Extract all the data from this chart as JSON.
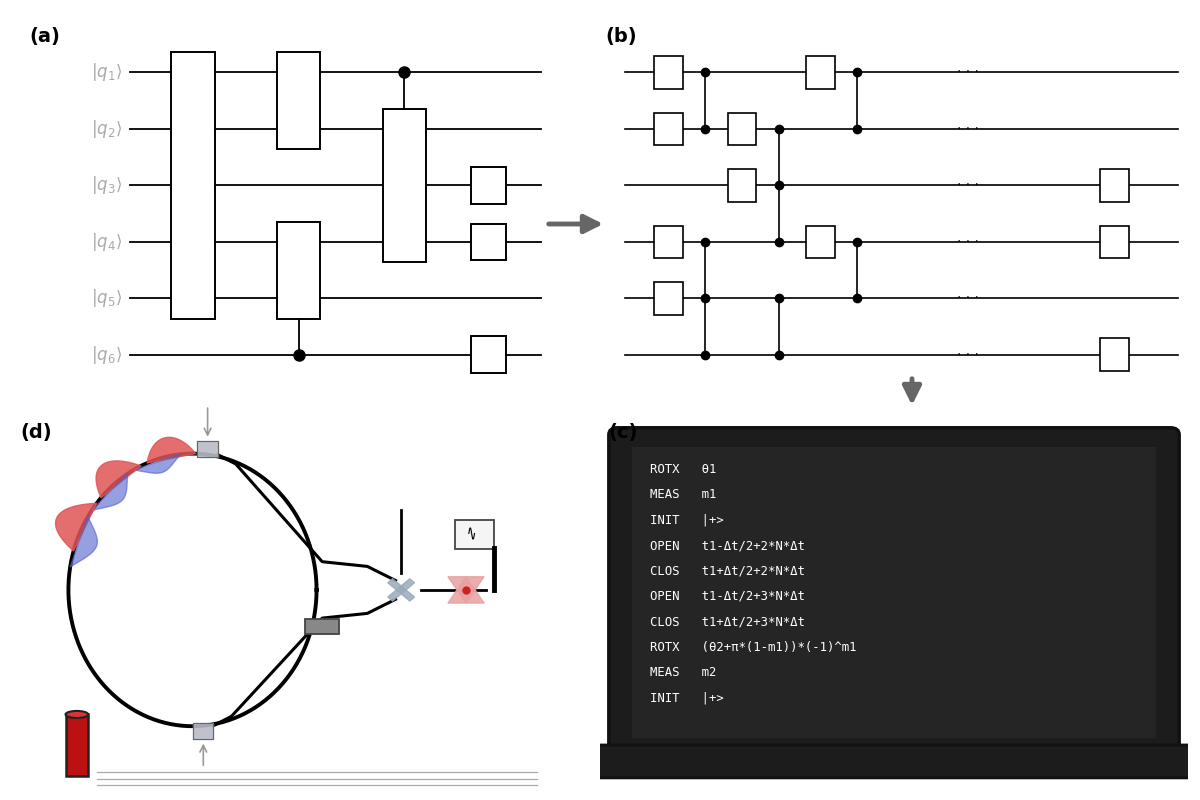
{
  "bg_color": "#ffffff",
  "code_lines": [
    "ROTX   θ1",
    "MEAS   m1",
    "INIT   |+>",
    "OPEN   t1-Δt/2+2*N*Δt",
    "CLOS   t1+Δt/2+2*N*Δt",
    "OPEN   t1-Δt/2+3*N*Δt",
    "CLOS   t1+Δt/2+3*N*Δt",
    "ROTX   (θ2+π*(1-m1))*(-1)^m1",
    "MEAS   m2",
    "INIT   |+>"
  ],
  "qubit_labels_a": [
    "$|q_1\\rangle$",
    "$|q_2\\rangle$",
    "$|q_3\\rangle$",
    "$|q_4\\rangle$",
    "$|q_5\\rangle$",
    "$|q_6\\rangle$"
  ],
  "arrow_color": "#666666",
  "wire_color": "#000000",
  "gate_edge": "#000000",
  "gate_face": "#ffffff",
  "dot_color": "#000000",
  "label_color": "#aaaaaa",
  "panel_label_color": "#000000"
}
